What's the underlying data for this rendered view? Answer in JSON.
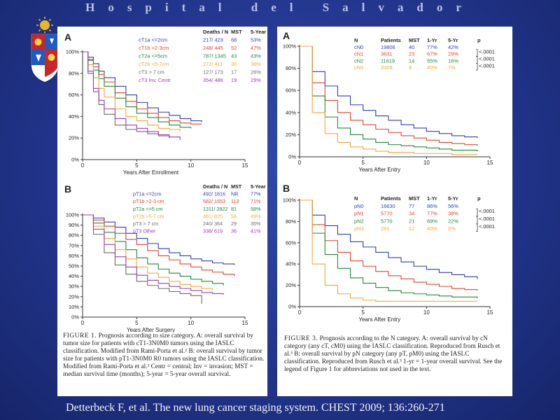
{
  "slide": {
    "title": "Hospital del Salvador",
    "citation": "Detterbeck F, et al. The new lung cancer staging system. CHEST 2009; 136:260-271"
  },
  "figure1": {
    "caption_label": "FIGURE 1.",
    "caption_text": "Prognosis according to size category. A: overall survival by tumor size for patients with cT1-3N0M0 tumors using the IASLC classification. Modified from Rami-Porta et al.² B: overall survival by tumor size for patients with pT1-3N0M0 R0 tumors using the IASLC classification. Modified from Rami-Porta et al.² Centr = central; Inv = invasion; MST = median survival time (months); 5-year = 5-year overall survival."
  },
  "figure3": {
    "caption_label": "FIGURE 3.",
    "caption_text": "Prognosis according to the N category. A: overall survival by cN category (any cT, cM0) using the IASLC classification. Reproduced from Rusch et al.³ B: overall survival by pN category (any pT, pM0) using the IASLC classification. Reproduced from Rusch et al.³ 1-yr = 1-year overall survival. See the legend of Figure 1 for abbreviations not used in the text."
  },
  "chart_data": [
    {
      "type": "line",
      "panel": "A",
      "xlabel": "Years After Enrollment",
      "ylabel": "",
      "xlim": [
        0,
        15
      ],
      "ylim": [
        0,
        100
      ],
      "x_ticks": [
        "0",
        "5",
        "10",
        "15"
      ],
      "y_ticks": [
        "0%",
        "20%",
        "40%",
        "60%",
        "80%",
        "100%"
      ],
      "table_headers": [
        "",
        "Deaths / N",
        "MST",
        "5-Year"
      ],
      "table_rows": [
        {
          "label": "cT1a  <=2cm",
          "deaths_n": "217/ 423",
          "mst": "68",
          "five_year": "53%",
          "color": "#2f3fb0"
        },
        {
          "label": "cT1b  >2-3cm",
          "deaths_n": "248/ 445",
          "mst": "52",
          "five_year": "47%",
          "color": "#e0452b"
        },
        {
          "label": "cT2a  <=5cm",
          "deaths_n": "787/ 1345",
          "mst": "43",
          "five_year": "43%",
          "color": "#1e8a3c"
        },
        {
          "label": "cT2b  >5-7cm",
          "deaths_n": "272/ 411",
          "mst": "30",
          "five_year": "36%",
          "color": "#f2a83a"
        },
        {
          "label": "cT3   > 7 cm",
          "deaths_n": "127/ 173",
          "mst": "17",
          "five_year": "26%",
          "color": "#6b6b6b"
        },
        {
          "label": "cT3   Inv, Centr",
          "deaths_n": "354/ 486",
          "mst": "19",
          "five_year": "29%",
          "color": "#9b3fb0"
        }
      ],
      "series": [
        {
          "x": [
            0,
            0.5,
            1,
            1.5,
            2,
            3,
            4,
            5,
            6,
            7,
            8,
            9,
            10,
            11
          ],
          "y": [
            100,
            95,
            89,
            82,
            76,
            68,
            60,
            53,
            48,
            44,
            41,
            38,
            36,
            35
          ]
        },
        {
          "x": [
            0,
            0.5,
            1,
            1.5,
            2,
            3,
            4,
            5,
            6,
            7,
            8,
            9,
            10,
            11
          ],
          "y": [
            100,
            93,
            86,
            79,
            72,
            62,
            54,
            47,
            43,
            39,
            36,
            34,
            33,
            33
          ]
        },
        {
          "x": [
            0,
            0.5,
            1,
            1.5,
            2,
            3,
            4,
            5,
            6,
            7,
            8,
            9,
            10
          ],
          "y": [
            100,
            92,
            83,
            75,
            68,
            57,
            49,
            43,
            39,
            35,
            32,
            30,
            29
          ]
        },
        {
          "x": [
            0,
            0.5,
            1,
            1.5,
            2,
            3,
            4,
            5,
            6,
            7,
            8,
            9
          ],
          "y": [
            100,
            88,
            76,
            66,
            58,
            47,
            40,
            36,
            32,
            29,
            28,
            26
          ]
        },
        {
          "x": [
            0,
            0.5,
            1,
            1.5,
            2,
            3,
            4,
            5,
            6,
            7,
            8
          ],
          "y": [
            100,
            80,
            63,
            51,
            42,
            32,
            28,
            26,
            24,
            22,
            20
          ]
        },
        {
          "x": [
            0,
            0.5,
            1,
            1.5,
            2,
            3,
            4,
            5,
            6,
            7,
            8,
            9
          ],
          "y": [
            100,
            82,
            66,
            55,
            47,
            38,
            32,
            29,
            26,
            23,
            21,
            18
          ]
        }
      ]
    },
    {
      "type": "line",
      "panel": "B",
      "xlabel": "Years After Surgery",
      "ylabel": "",
      "xlim": [
        0,
        15
      ],
      "ylim": [
        0,
        100
      ],
      "x_ticks": [
        "0",
        "5",
        "10",
        "15"
      ],
      "y_ticks": [
        "0%",
        "10%",
        "20%",
        "30%",
        "40%",
        "50%",
        "60%",
        "70%",
        "80%",
        "90%",
        "100%"
      ],
      "table_headers": [
        "",
        "Deaths / N",
        "MST",
        "5-Year"
      ],
      "table_rows": [
        {
          "label": "pT1a  <=2cm",
          "deaths_n": "492/ 1816",
          "mst": "NR",
          "five_year": "77%",
          "color": "#2f3fb0"
        },
        {
          "label": "pT1b  >2-3 cm",
          "deaths_n": "582/ 1653",
          "mst": "113",
          "five_year": "71%",
          "color": "#e0452b"
        },
        {
          "label": "pT2a  <=5 cm",
          "deaths_n": "1311/ 2822",
          "mst": "81",
          "five_year": "58%",
          "color": "#1e8a3c"
        },
        {
          "label": "pT2b  >5-7 cm",
          "deaths_n": "461/ 825",
          "mst": "56",
          "five_year": "49%",
          "color": "#f2a83a"
        },
        {
          "label": "pT3   > 7 cm",
          "deaths_n": "240/ 364",
          "mst": "29",
          "five_year": "35%",
          "color": "#6b6b6b"
        },
        {
          "label": "pT3   Other",
          "deaths_n": "338/ 619",
          "mst": "36",
          "five_year": "41%",
          "color": "#9b3fb0"
        }
      ],
      "series": [
        {
          "x": [
            0,
            1,
            2,
            3,
            4,
            5,
            6,
            7,
            8,
            9,
            10,
            11,
            12,
            13,
            14
          ],
          "y": [
            100,
            97,
            93,
            88,
            82,
            77,
            72,
            67,
            63,
            60,
            57,
            55,
            53,
            52,
            51
          ]
        },
        {
          "x": [
            0,
            1,
            2,
            3,
            4,
            5,
            6,
            7,
            8,
            9,
            10,
            11,
            12,
            13,
            14
          ],
          "y": [
            100,
            95,
            89,
            82,
            76,
            71,
            65,
            60,
            56,
            52,
            49,
            46,
            44,
            42,
            40
          ]
        },
        {
          "x": [
            0,
            1,
            2,
            3,
            4,
            5,
            6,
            7,
            8,
            9,
            10,
            11,
            12,
            13
          ],
          "y": [
            100,
            92,
            83,
            74,
            66,
            58,
            52,
            47,
            43,
            40,
            37,
            35,
            33,
            31
          ]
        },
        {
          "x": [
            0,
            1,
            2,
            3,
            4,
            5,
            6,
            7,
            8,
            9,
            10,
            11,
            12
          ],
          "y": [
            100,
            89,
            77,
            66,
            57,
            49,
            43,
            39,
            35,
            32,
            30,
            28,
            26
          ]
        },
        {
          "x": [
            0,
            1,
            2,
            3,
            4,
            5,
            6,
            7,
            8,
            9,
            10,
            11
          ],
          "y": [
            100,
            81,
            63,
            51,
            42,
            35,
            31,
            28,
            25,
            23,
            21,
            13
          ]
        },
        {
          "x": [
            0,
            1,
            2,
            3,
            4,
            5,
            6,
            7,
            8,
            9,
            10,
            11,
            12,
            13
          ],
          "y": [
            100,
            86,
            71,
            59,
            49,
            41,
            36,
            33,
            30,
            28,
            26,
            24,
            23,
            22
          ]
        }
      ]
    },
    {
      "type": "line",
      "panel": "A",
      "xlabel": "Years After Entry",
      "ylabel": "",
      "xlim": [
        0,
        15
      ],
      "ylim": [
        0,
        100
      ],
      "x_ticks": [
        "0",
        "5",
        "10",
        "15"
      ],
      "y_ticks": [
        "0%",
        "20%",
        "40%",
        "60%",
        "80%",
        "100%"
      ],
      "table_headers": [
        "N",
        "Patients",
        "MST",
        "1-Yr",
        "5-Yr",
        "p"
      ],
      "table_rows": [
        {
          "label": "cN0",
          "patients": "19806",
          "mst": "40",
          "one_year": "77%",
          "five_year": "42%",
          "color": "#2f3fb0"
        },
        {
          "label": "cN1",
          "patients": "3631",
          "mst": "23",
          "one_year": "67%",
          "five_year": "29%",
          "color": "#e0452b"
        },
        {
          "label": "cN2",
          "patients": "11619",
          "mst": "14",
          "one_year": "55%",
          "five_year": "16%",
          "color": "#1e8a3c"
        },
        {
          "label": "cN3",
          "patients": "3309",
          "mst": "9",
          "one_year": "40%",
          "five_year": "7%",
          "color": "#f2a83a"
        }
      ],
      "p_values": [
        "<.0001",
        "<.0001",
        "<.0001"
      ],
      "series": [
        {
          "x": [
            0,
            1,
            2,
            3,
            4,
            5,
            6,
            7,
            8,
            9,
            10,
            11,
            12,
            13,
            14
          ],
          "y": [
            100,
            77,
            64,
            55,
            47,
            42,
            37,
            33,
            29,
            26,
            23,
            21,
            19,
            18,
            17
          ]
        },
        {
          "x": [
            0,
            1,
            2,
            3,
            4,
            5,
            6,
            7,
            8,
            9,
            10,
            11,
            12,
            13,
            14
          ],
          "y": [
            100,
            67,
            51,
            40,
            33,
            29,
            25,
            22,
            19,
            17,
            15,
            13,
            12,
            11,
            10
          ]
        },
        {
          "x": [
            0,
            1,
            2,
            3,
            4,
            5,
            6,
            7,
            8,
            9,
            10,
            11,
            12,
            13,
            14
          ],
          "y": [
            100,
            55,
            36,
            26,
            20,
            16,
            13,
            11,
            10,
            9,
            8,
            7,
            6,
            6,
            5
          ]
        },
        {
          "x": [
            0,
            1,
            2,
            3,
            4,
            5,
            6,
            7,
            8,
            9,
            10,
            11,
            12,
            13,
            14
          ],
          "y": [
            100,
            40,
            21,
            13,
            9,
            7,
            5,
            4,
            4,
            3,
            3,
            3,
            2,
            2,
            2
          ]
        }
      ]
    },
    {
      "type": "line",
      "panel": "B",
      "xlabel": "Years After Entry",
      "ylabel": "",
      "xlim": [
        0,
        15
      ],
      "ylim": [
        0,
        100
      ],
      "x_ticks": [
        "0",
        "5",
        "10",
        "15"
      ],
      "y_ticks": [
        "0%",
        "20%",
        "40%",
        "60%",
        "80%",
        "100%"
      ],
      "table_headers": [
        "N",
        "Patients",
        "MST",
        "1-Yr",
        "5-Yr",
        "p"
      ],
      "table_rows": [
        {
          "label": "pN0",
          "patients": "16630",
          "mst": "77",
          "one_year": "86%",
          "five_year": "56%",
          "color": "#2f3fb0"
        },
        {
          "label": "pN1",
          "patients": "5770",
          "mst": "34",
          "one_year": "77%",
          "five_year": "38%",
          "color": "#e0452b"
        },
        {
          "label": "pN2",
          "patients": "5770",
          "mst": "21",
          "one_year": "69%",
          "five_year": "22%",
          "color": "#1e8a3c"
        },
        {
          "label": "pN3",
          "patients": "281",
          "mst": "12",
          "one_year": "40%",
          "five_year": "6%",
          "color": "#f2a83a"
        }
      ],
      "p_values": [
        "<.0001",
        "<.0001",
        "<.0001"
      ],
      "series": [
        {
          "x": [
            0,
            1,
            2,
            3,
            4,
            5,
            6,
            7,
            8,
            9,
            10,
            11,
            12,
            13,
            14
          ],
          "y": [
            100,
            86,
            76,
            68,
            61,
            56,
            51,
            46,
            42,
            38,
            35,
            32,
            30,
            28,
            26
          ]
        },
        {
          "x": [
            0,
            1,
            2,
            3,
            4,
            5,
            6,
            7,
            8,
            9,
            10,
            11,
            12,
            13,
            14
          ],
          "y": [
            100,
            77,
            62,
            51,
            43,
            38,
            33,
            29,
            26,
            23,
            21,
            19,
            17,
            16,
            15
          ]
        },
        {
          "x": [
            0,
            1,
            2,
            3,
            4,
            5,
            6,
            7,
            8,
            9,
            10,
            11,
            12,
            13,
            14
          ],
          "y": [
            100,
            69,
            49,
            36,
            27,
            22,
            18,
            15,
            13,
            12,
            11,
            10,
            9,
            9,
            8
          ]
        },
        {
          "x": [
            0,
            1,
            2,
            3,
            4,
            5,
            6,
            7,
            8,
            9,
            10,
            11,
            12,
            13,
            14
          ],
          "y": [
            100,
            40,
            20,
            12,
            8,
            6,
            5,
            5,
            5,
            5,
            5,
            5,
            5,
            5,
            5
          ]
        }
      ]
    }
  ]
}
